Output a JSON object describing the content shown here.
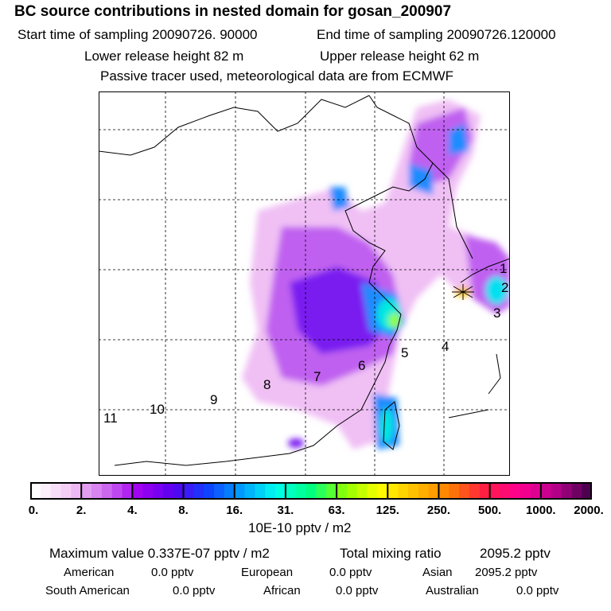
{
  "header": {
    "title": "BC  source contributions in nested domain for gosan_200907",
    "start_label": "Start time of sampling 20090726. 90000",
    "end_label": "End time of sampling 20090726.120000",
    "lower_label": "Lower release height   82 m",
    "upper_label": "Upper release height   62 m",
    "note": "Passive tracer used, meteorological data are from ECMWF"
  },
  "map": {
    "region_labels": [
      "1",
      "2",
      "3",
      "4",
      "5",
      "6",
      "7",
      "8",
      "9",
      "10",
      "11"
    ]
  },
  "colorbar": {
    "ticks": [
      "0.",
      "2.",
      "4.",
      "8.",
      "16.",
      "31.",
      "63.",
      "125.",
      "250.",
      "500.",
      "1000.",
      "2000."
    ],
    "units": "10E-10 pptv / m2",
    "colors": [
      "#ffffff",
      "#f4c8f4",
      "#d070f0",
      "#a000f0",
      "#5a00f0",
      "#1040ff",
      "#00a0ff",
      "#00ffee",
      "#00ff80",
      "#90ff00",
      "#ffff00",
      "#ffc000",
      "#ff8000",
      "#ff2040",
      "#ff0090",
      "#c00090",
      "#500050"
    ]
  },
  "stats": {
    "max_label": "Maximum value  0.337E-07 pptv / m2",
    "total_label": "Total mixing ratio",
    "total_value": "2095.2 pptv",
    "rows": [
      [
        {
          "name": "American",
          "value": "0.0 pptv"
        },
        {
          "name": "European",
          "value": "0.0 pptv"
        },
        {
          "name": "Asian",
          "value": "2095.2 pptv"
        }
      ],
      [
        {
          "name": "South American",
          "value": "0.0 pptv"
        },
        {
          "name": "African",
          "value": "0.0 pptv"
        },
        {
          "name": "Australian",
          "value": "0.0 pptv"
        }
      ]
    ]
  }
}
